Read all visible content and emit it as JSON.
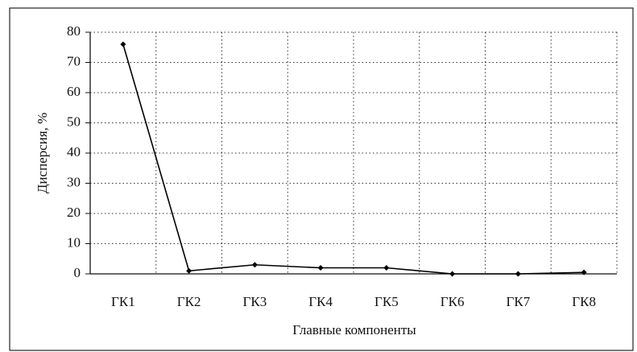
{
  "chart_data": {
    "type": "line",
    "ylabel": "Дисперсия, %",
    "xlabel": "Главные компоненты",
    "categories": [
      "ГК1",
      "ГК2",
      "ГК3",
      "ГК4",
      "ГК5",
      "ГК6",
      "ГК7",
      "ГК8"
    ],
    "series": [
      {
        "name": "Дисперсия",
        "color": "#000000",
        "values": [
          76,
          1,
          3,
          2,
          2,
          0,
          0,
          0.5
        ]
      }
    ],
    "ylim": [
      0,
      80
    ],
    "yticks": [
      0,
      10,
      20,
      30,
      40,
      50,
      60,
      70,
      80
    ],
    "grid": true
  }
}
